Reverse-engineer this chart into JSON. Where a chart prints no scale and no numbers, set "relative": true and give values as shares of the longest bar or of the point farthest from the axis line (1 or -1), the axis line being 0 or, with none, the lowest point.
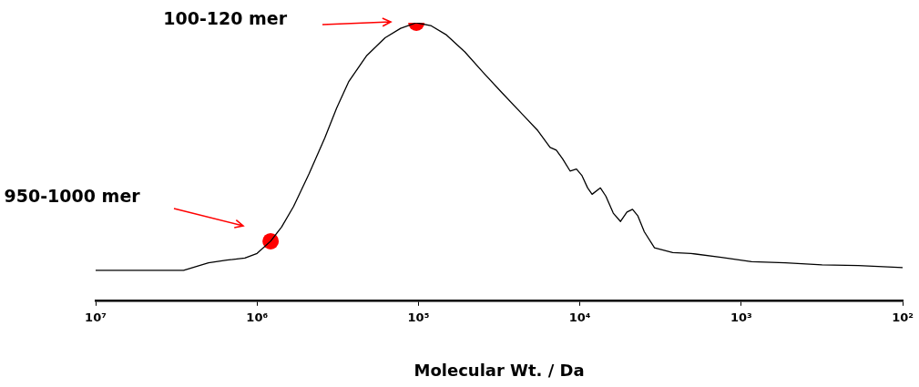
{
  "chart_data": {
    "type": "line",
    "xlabel": "Molecular Wt. / Da",
    "relative": true,
    "log": "x",
    "grid": false,
    "legend": false,
    "marker": "none",
    "line_style": "solid",
    "xlim": [
      10000000,
      100
    ],
    "xticks": [
      {
        "value": 10000000,
        "label": "10⁷"
      },
      {
        "value": 1000000,
        "label": "10⁶"
      },
      {
        "value": 100000,
        "label": "10⁵"
      },
      {
        "value": 10000,
        "label": "10⁴"
      },
      {
        "value": 1000,
        "label": "10³"
      },
      {
        "value": 100,
        "label": "10²"
      }
    ],
    "series": [
      {
        "color": "#000000",
        "x": [
          10000000,
          5700000,
          2850000,
          2000000,
          1540000,
          1190000,
          1000000,
          824000,
          705000,
          594000,
          476000,
          381000,
          321000,
          271000,
          209000,
          161000,
          129000,
          103000,
          84000,
          67000,
          51600,
          39700,
          30600,
          22600,
          18200,
          15300,
          14000,
          12800,
          11500,
          10500,
          9700,
          8950,
          8400,
          7460,
          6900,
          6210,
          5600,
          5110,
          4720,
          4370,
          3990,
          3450,
          2660,
          2050,
          1330,
          863,
          532,
          316,
          188,
          100
        ],
        "values": [
          0.108,
          0.108,
          0.108,
          0.135,
          0.145,
          0.152,
          0.169,
          0.213,
          0.264,
          0.338,
          0.456,
          0.584,
          0.693,
          0.787,
          0.882,
          0.946,
          0.98,
          1.0,
          0.99,
          0.956,
          0.895,
          0.821,
          0.75,
          0.669,
          0.611,
          0.551,
          0.541,
          0.51,
          0.466,
          0.473,
          0.449,
          0.405,
          0.382,
          0.405,
          0.375,
          0.314,
          0.284,
          0.318,
          0.328,
          0.304,
          0.247,
          0.189,
          0.172,
          0.169,
          0.155,
          0.139,
          0.135,
          0.128,
          0.125,
          0.118
        ]
      },
      {
        "type": "scatter",
        "color": "#ff0000",
        "marker": "circle",
        "x": [
          824000,
          103000
        ],
        "values": [
          0.213,
          1.0
        ]
      }
    ],
    "annotations": [
      "100-120 mer",
      "950-1000 mer"
    ]
  }
}
